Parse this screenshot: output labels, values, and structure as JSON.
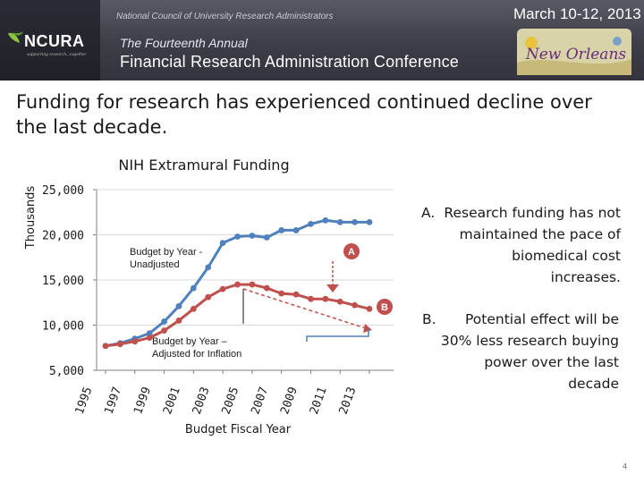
{
  "header": {
    "organization": "National Council of University Research Administrators",
    "logo_text": "NCURA",
    "logo_tagline": "supporting research...together",
    "edition": "The Fourteenth Annual",
    "conference": "Financial Research Administration Conference",
    "dates": "March 10-12, 2013",
    "city_badge": "New Orleans"
  },
  "slide": {
    "headline": "Funding for research has experienced continued decline over the last decade.",
    "page_number": "4"
  },
  "notes": [
    {
      "key": "A.",
      "text": "Research funding has not maintained the pace of biomedical cost increases."
    },
    {
      "key": "B.",
      "text": "Potential effect will be 30% less research buying power over the last decade"
    }
  ],
  "colors": {
    "unadjusted": "#4f81bd",
    "adjusted": "#c0504d",
    "annotation": "#c0504d",
    "bracket": "#4f81bd"
  },
  "chart_data": {
    "type": "line",
    "title": "NIH Extramural Funding",
    "xlabel": "Budget Fiscal Year",
    "ylabel": "Thousands",
    "ylim": [
      5000,
      25000
    ],
    "yticks": [
      5000,
      10000,
      15000,
      20000,
      25000
    ],
    "ytick_labels": [
      "5,000",
      "10,000",
      "15,000",
      "20,000",
      "25,000"
    ],
    "x": [
      1995,
      1996,
      1997,
      1998,
      1999,
      2000,
      2001,
      2002,
      2003,
      2004,
      2005,
      2006,
      2007,
      2008,
      2009,
      2010,
      2011,
      2012,
      2013
    ],
    "xtick_labels": [
      "1995",
      "1997",
      "1999",
      "2001",
      "2003",
      "2005",
      "2007",
      "2009",
      "2011",
      "2013"
    ],
    "series": [
      {
        "name": "Budget by Year - Unadjusted",
        "values": [
          7700,
          8000,
          8500,
          9100,
          10400,
          12100,
          14100,
          16400,
          19100,
          19800,
          19900,
          19700,
          20500,
          20500,
          21200,
          21600,
          21400,
          21400,
          21400
        ]
      },
      {
        "name": "Budget by Year – Adjusted for Inflation",
        "values": [
          7700,
          7900,
          8200,
          8600,
          9400,
          10500,
          11800,
          13100,
          14000,
          14500,
          14500,
          14100,
          13500,
          13400,
          12900,
          12900,
          12600,
          12200,
          11800
        ]
      }
    ],
    "annotations": [
      {
        "label": "A"
      },
      {
        "label": "B"
      }
    ]
  }
}
